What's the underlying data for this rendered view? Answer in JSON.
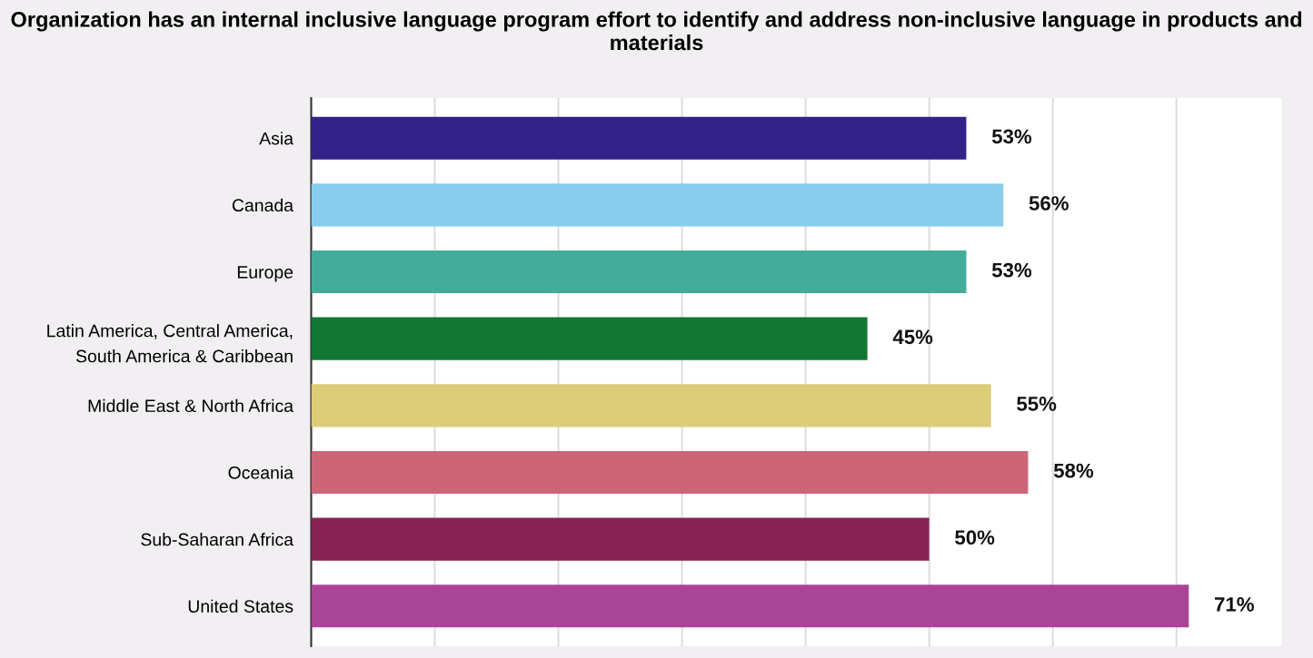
{
  "chart_data": {
    "type": "bar",
    "orientation": "horizontal",
    "title": "Organization has an internal inclusive language program effort to identify and address non-inclusive language in products and materials",
    "categories": [
      "Asia",
      "Canada",
      "Europe",
      "Latin America, Central America,\nSouth America & Caribbean",
      "Middle East & North Africa",
      "Oceania",
      "Sub-Saharan Africa",
      "United States"
    ],
    "values": [
      53,
      56,
      53,
      45,
      55,
      58,
      50,
      71
    ],
    "value_labels": [
      "53%",
      "56%",
      "53%",
      "45%",
      "55%",
      "58%",
      "50%",
      "71%"
    ],
    "colors": [
      "#332288",
      "#88ccee",
      "#44aa99",
      "#117733",
      "#ddcc77",
      "#cc6677",
      "#882255",
      "#aa4499"
    ],
    "xlim": [
      0,
      78.5
    ],
    "xticks": [
      {
        "value": 0,
        "label": null
      },
      {
        "value": 10,
        "label": null
      },
      {
        "value": 20,
        "label": null
      },
      {
        "value": 30,
        "label": null
      },
      {
        "value": 40,
        "label": null
      },
      {
        "value": 50,
        "label": null
      },
      {
        "value": 60,
        "label": null
      },
      {
        "value": 70,
        "label": null
      }
    ],
    "grid": "x",
    "tick_labels": "y",
    "legend": false
  }
}
